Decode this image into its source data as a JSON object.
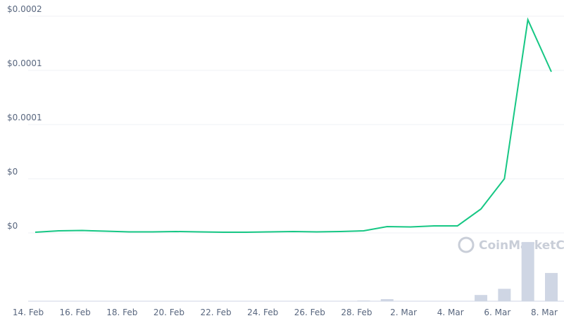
{
  "chart_data": {
    "type": "line",
    "watermark": "CoinMarketCap",
    "categories": [
      "14. Feb",
      null,
      "16. Feb",
      null,
      "18. Feb",
      null,
      "20. Feb",
      null,
      "22. Feb",
      null,
      "24. Feb",
      null,
      "26. Feb",
      null,
      "28. Feb",
      null,
      "2. Mar",
      null,
      "4. Mar",
      null,
      "6. Mar",
      null,
      "8. Mar"
    ],
    "series": [
      {
        "color": "#16c784",
        "values": [
          6.5e-07,
          1.95e-06,
          2.27e-06,
          1.62e-06,
          9.7e-07,
          9.7e-07,
          1.3e-06,
          9.7e-07,
          6.5e-07,
          6.5e-07,
          9.7e-07,
          1.3e-06,
          9.7e-07,
          1.3e-06,
          1.95e-06,
          5.84e-06,
          5.5e-06,
          6.5e-06,
          6.5e-06,
          2.21e-05,
          5e-05,
          0.0001967,
          0.0001487
        ]
      }
    ],
    "volume": {
      "color": "#cfd6e4",
      "values": [
        0,
        0.5,
        0.5,
        0,
        0,
        0,
        0,
        0,
        0,
        0,
        0,
        0,
        0,
        0,
        1,
        3,
        0.5,
        0.5,
        0.5,
        9,
        18,
        86,
        41
      ],
      "ylim": [
        0,
        90
      ]
    },
    "ylim": [
      0,
      0.0002
    ],
    "yticks": [
      {
        "value": 0,
        "label": "$0"
      },
      {
        "value": 5e-05,
        "label": "$0"
      },
      {
        "value": 0.0001,
        "label": "$0.0001"
      },
      {
        "value": 0.00015,
        "label": "$0.0001"
      },
      {
        "value": 0.0002,
        "label": "$0.0002"
      }
    ],
    "grid": true
  }
}
